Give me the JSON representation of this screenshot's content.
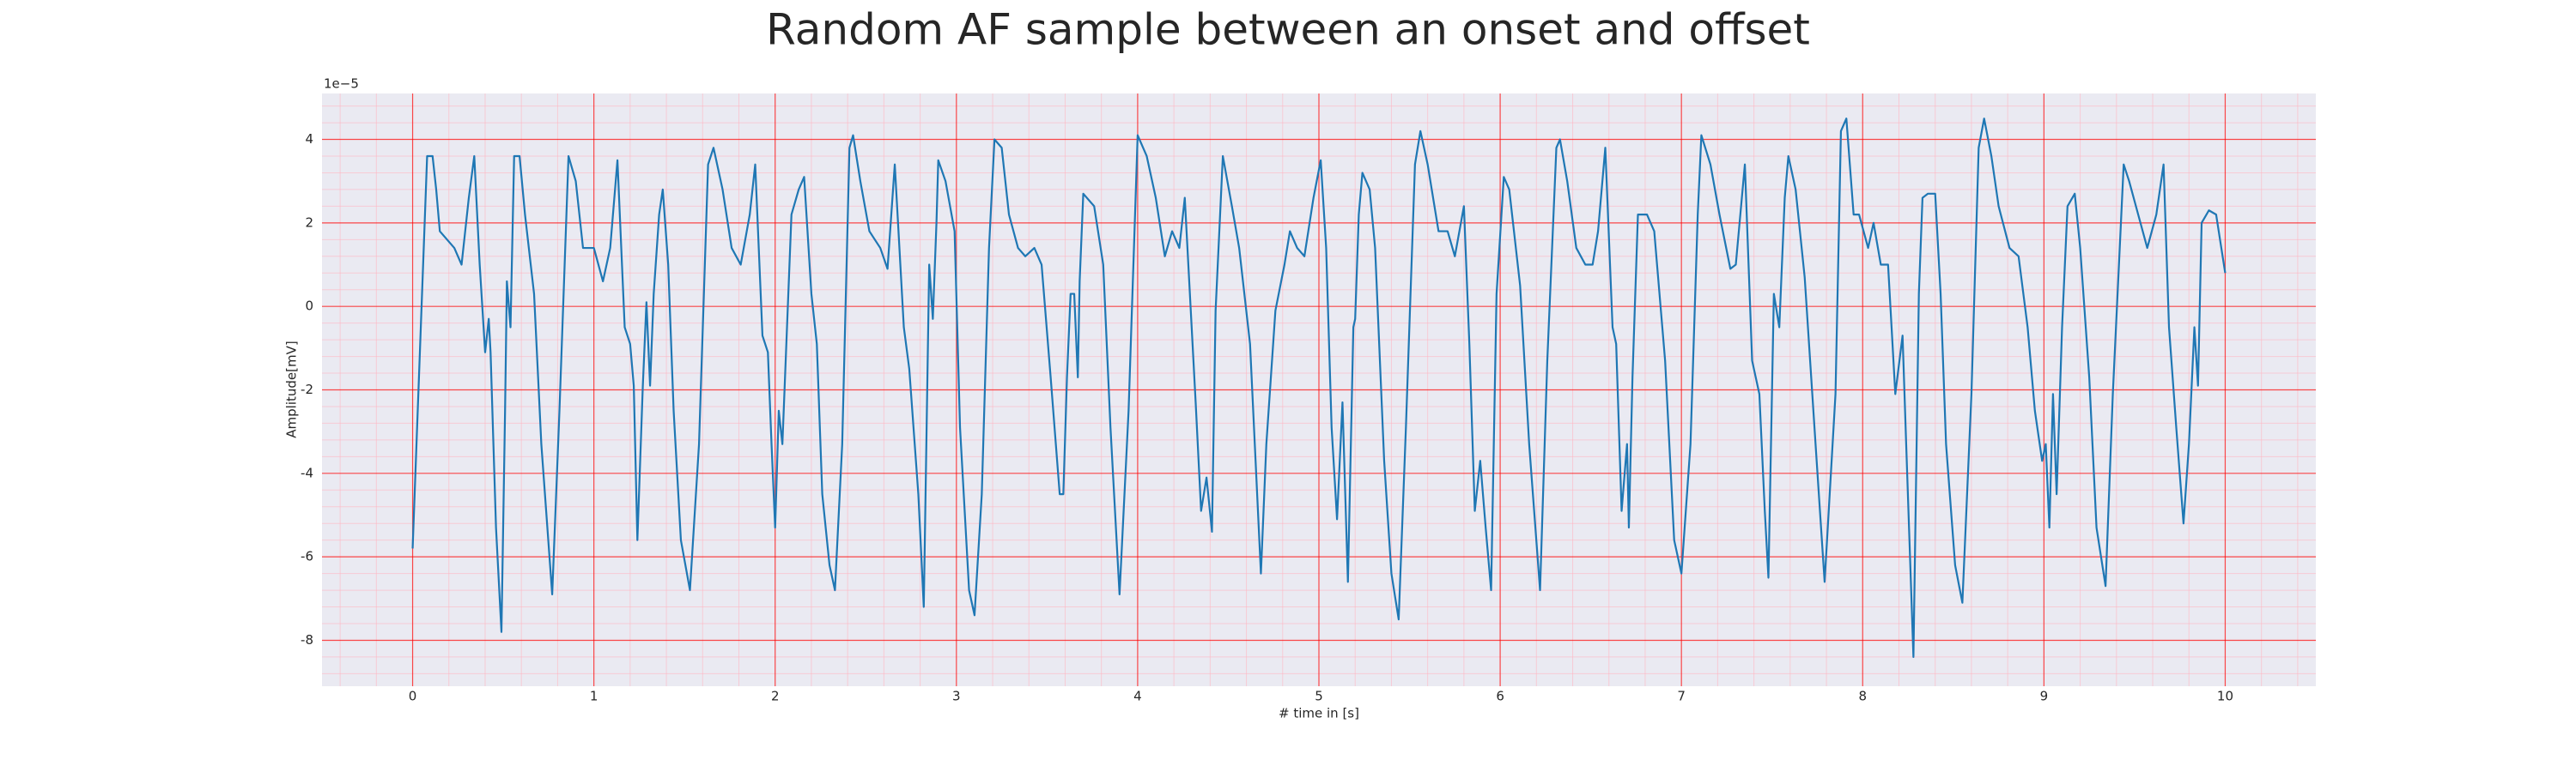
{
  "chart_data": {
    "type": "line",
    "title": "Random AF sample between an onset and offset",
    "xlabel": "# time in [s]",
    "ylabel": "Amplitude[mV]",
    "y_offset_label": "1e−5",
    "color": "#1f77b4",
    "grid": true,
    "grid_color": "#ff0000",
    "minor_grid": true,
    "minor_grid_color": "#ffb6c1",
    "background": "#eaeaf2",
    "xlim": [
      -0.5,
      10.5
    ],
    "xticks": [
      0,
      1,
      2,
      3,
      4,
      5,
      6,
      7,
      8,
      9,
      10
    ],
    "ylim": [
      -9.1,
      5.1
    ],
    "yticks": [
      -8,
      -6,
      -4,
      -2,
      0,
      2,
      4
    ],
    "x": [
      0,
      0.08,
      0.11,
      0.13,
      0.15,
      0.19,
      0.23,
      0.27,
      0.31,
      0.34,
      0.37,
      0.4,
      0.42,
      0.43,
      0.46,
      0.49,
      0.51,
      0.52,
      0.54,
      0.56,
      0.59,
      0.62,
      0.67,
      0.71,
      0.77,
      0.81,
      0.86,
      0.9,
      0.94,
      1.0,
      1.05,
      1.09,
      1.13,
      1.17,
      1.2,
      1.22,
      1.24,
      1.27,
      1.29,
      1.31,
      1.33,
      1.36,
      1.38,
      1.41,
      1.44,
      1.48,
      1.53,
      1.58,
      1.63,
      1.66,
      1.71,
      1.76,
      1.81,
      1.86,
      1.89,
      1.93,
      1.96,
      1.98,
      2.0,
      2.02,
      2.04,
      2.06,
      2.09,
      2.13,
      2.16,
      2.2,
      2.23,
      2.26,
      2.3,
      2.33,
      2.37,
      2.41,
      2.43,
      2.47,
      2.52,
      2.58,
      2.62,
      2.66,
      2.71,
      2.74,
      2.79,
      2.82,
      2.85,
      2.87,
      2.89,
      2.9,
      2.94,
      2.99,
      3.02,
      3.07,
      3.1,
      3.14,
      3.18,
      3.21,
      3.25,
      3.29,
      3.34,
      3.38,
      3.43,
      3.47,
      3.52,
      3.57,
      3.59,
      3.61,
      3.63,
      3.65,
      3.67,
      3.68,
      3.7,
      3.76,
      3.81,
      3.85,
      3.9,
      3.95,
      4.0,
      4.05,
      4.1,
      4.15,
      4.19,
      4.23,
      4.26,
      4.32,
      4.35,
      4.38,
      4.41,
      4.43,
      4.47,
      4.52,
      4.56,
      4.62,
      4.68,
      4.71,
      4.76,
      4.81,
      4.84,
      4.88,
      4.92,
      4.97,
      5.01,
      5.04,
      5.07,
      5.1,
      5.13,
      5.16,
      5.19,
      5.2,
      5.22,
      5.24,
      5.28,
      5.31,
      5.36,
      5.4,
      5.44,
      5.48,
      5.53,
      5.56,
      5.6,
      5.66,
      5.71,
      5.75,
      5.8,
      5.83,
      5.86,
      5.89,
      5.92,
      5.95,
      5.98,
      6.02,
      6.05,
      6.11,
      6.16,
      6.22,
      6.26,
      6.31,
      6.33,
      6.37,
      6.42,
      6.47,
      6.51,
      6.54,
      6.58,
      6.62,
      6.64,
      6.67,
      6.7,
      6.71,
      6.73,
      6.76,
      6.81,
      6.85,
      6.91,
      6.96,
      7.0,
      7.05,
      7.09,
      7.11,
      7.16,
      7.21,
      7.27,
      7.3,
      7.35,
      7.39,
      7.43,
      7.46,
      7.48,
      7.51,
      7.54,
      7.57,
      7.59,
      7.63,
      7.68,
      7.74,
      7.79,
      7.85,
      7.88,
      7.91,
      7.95,
      7.98,
      8.03,
      8.06,
      8.1,
      8.14,
      8.18,
      8.22,
      8.24,
      8.28,
      8.31,
      8.33,
      8.36,
      8.4,
      8.43,
      8.46,
      8.51,
      8.55,
      8.6,
      8.64,
      8.67,
      8.71,
      8.75,
      8.81,
      8.86,
      8.91,
      8.95,
      8.99,
      9.01,
      9.03,
      9.05,
      9.07,
      9.1,
      9.13,
      9.17,
      9.2,
      9.25,
      9.29,
      9.34,
      9.38,
      9.44,
      9.47,
      9.52,
      9.57,
      9.62,
      9.66,
      9.69,
      9.73,
      9.77,
      9.8,
      9.83,
      9.85,
      9.87,
      9.91,
      9.95,
      10.0
    ],
    "values": [
      -5.8,
      3.6,
      3.6,
      2.8,
      1.8,
      1.6,
      1.4,
      1.0,
      2.6,
      3.6,
      1.0,
      -1.1,
      -0.3,
      -1.1,
      -5.3,
      -7.8,
      -2.5,
      0.6,
      -0.5,
      3.6,
      3.6,
      2.2,
      0.3,
      -3.3,
      -6.9,
      -2.5,
      3.6,
      3.0,
      1.4,
      1.4,
      0.6,
      1.4,
      3.5,
      -0.5,
      -0.9,
      -1.9,
      -5.6,
      -1.9,
      0.1,
      -1.9,
      0.3,
      2.2,
      2.8,
      1.0,
      -2.5,
      -5.6,
      -6.8,
      -3.3,
      3.4,
      3.8,
      2.8,
      1.4,
      1.0,
      2.2,
      3.4,
      -0.7,
      -1.1,
      -3.3,
      -5.3,
      -2.5,
      -3.3,
      -1.1,
      2.2,
      2.8,
      3.1,
      0.3,
      -0.9,
      -4.5,
      -6.2,
      -6.8,
      -3.3,
      3.8,
      4.1,
      3.0,
      1.8,
      1.4,
      0.9,
      3.4,
      -0.5,
      -1.5,
      -4.5,
      -7.2,
      1.0,
      -0.3,
      2.0,
      3.5,
      3.0,
      1.8,
      -2.9,
      -6.8,
      -7.4,
      -4.5,
      1.4,
      4.0,
      3.8,
      2.2,
      1.4,
      1.2,
      1.4,
      1.0,
      -1.7,
      -4.5,
      -4.5,
      -1.7,
      0.3,
      0.3,
      -1.7,
      0.6,
      2.7,
      2.4,
      1.0,
      -2.9,
      -6.9,
      -2.5,
      4.1,
      3.6,
      2.6,
      1.2,
      1.8,
      1.4,
      2.6,
      -2.3,
      -4.9,
      -4.1,
      -5.4,
      -0.1,
      3.6,
      2.4,
      1.4,
      -0.9,
      -6.4,
      -3.3,
      -0.1,
      1.0,
      1.8,
      1.4,
      1.2,
      2.6,
      3.5,
      1.4,
      -2.9,
      -5.1,
      -2.3,
      -6.6,
      -0.5,
      -0.3,
      2.2,
      3.2,
      2.8,
      1.4,
      -3.7,
      -6.4,
      -7.5,
      -2.9,
      3.4,
      4.2,
      3.4,
      1.8,
      1.8,
      1.2,
      2.4,
      -0.9,
      -4.9,
      -3.7,
      -5.3,
      -6.8,
      0.3,
      3.1,
      2.8,
      0.5,
      -3.3,
      -6.8,
      -1.3,
      3.8,
      4.0,
      3.0,
      1.4,
      1.0,
      1.0,
      1.8,
      3.8,
      -0.5,
      -0.9,
      -4.9,
      -3.3,
      -5.3,
      -1.7,
      2.2,
      2.2,
      1.8,
      -1.3,
      -5.6,
      -6.4,
      -3.3,
      2.2,
      4.1,
      3.4,
      2.2,
      0.9,
      1.0,
      3.4,
      -1.3,
      -2.1,
      -4.9,
      -6.5,
      0.3,
      -0.5,
      2.6,
      3.6,
      2.8,
      0.7,
      -3.3,
      -6.6,
      -2.1,
      4.2,
      4.5,
      2.2,
      2.2,
      1.4,
      2.0,
      1.0,
      1.0,
      -2.1,
      -0.7,
      -3.3,
      -8.4,
      0.3,
      2.6,
      2.7,
      2.7,
      0.3,
      -3.3,
      -6.2,
      -7.1,
      -2.1,
      3.8,
      4.5,
      3.6,
      2.4,
      1.4,
      1.2,
      -0.5,
      -2.5,
      -3.7,
      -3.3,
      -5.3,
      -2.1,
      -4.5,
      -0.5,
      2.4,
      2.7,
      1.4,
      -1.7,
      -5.3,
      -6.7,
      -2.1,
      3.4,
      3.0,
      2.2,
      1.4,
      2.2,
      3.4,
      -0.5,
      -2.9,
      -5.2,
      -3.3,
      -0.5,
      -1.9,
      2.0,
      2.3,
      2.2,
      0.8
    ]
  }
}
